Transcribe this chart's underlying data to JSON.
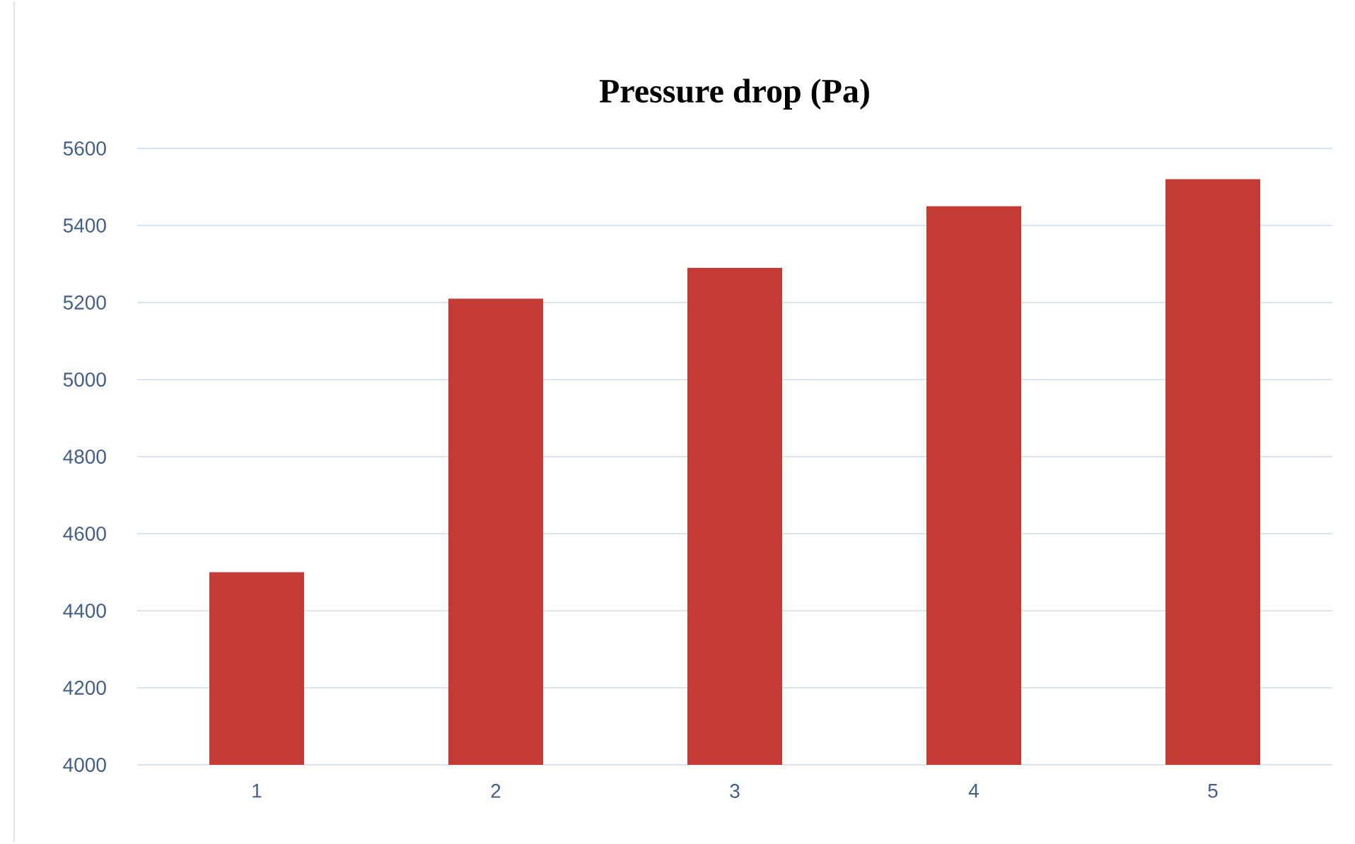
{
  "chart_data": {
    "type": "bar",
    "title": "Pressure drop (Pa)",
    "categories": [
      "1",
      "2",
      "3",
      "4",
      "5"
    ],
    "values": [
      4500,
      5210,
      5290,
      5450,
      5520
    ],
    "color": "#c43a35",
    "ylim": [
      4000,
      5600
    ],
    "yticks": [
      4000,
      4200,
      4400,
      4600,
      4800,
      5000,
      5200,
      5400,
      5600
    ],
    "grid": "y"
  }
}
